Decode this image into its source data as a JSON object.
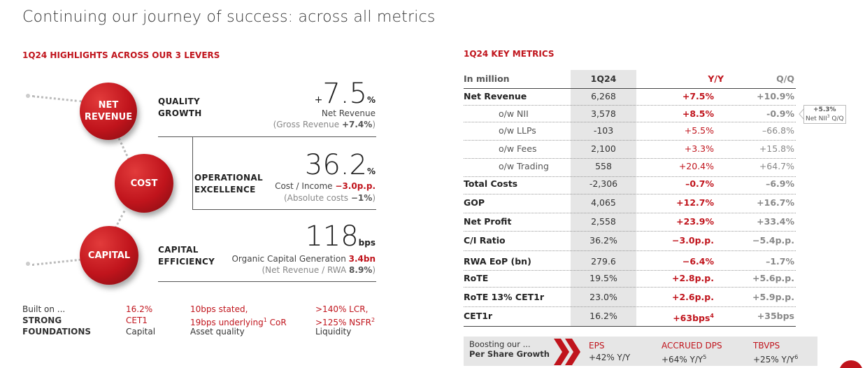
{
  "page_title": "Continuing our journey of success: across all metrics",
  "left_header": "1Q24 HIGHLIGHTS ACROSS OUR 3 LEVERS",
  "right_header": "1Q24 KEY METRICS",
  "levers": [
    {
      "circle_label": "NET REVENUE",
      "label": "QUALITY GROWTH",
      "prefix": "+",
      "value": "7.5",
      "unit": "%",
      "desc1": "Net Revenue",
      "desc2_pre": "(Gross Revenue ",
      "desc2_val": "+7.4%",
      "desc2_post": ")"
    },
    {
      "circle_label": "COST",
      "label": "OPERATIONAL EXCELLENCE",
      "value": "36.2",
      "unit": "%",
      "desc1_pre": "Cost / Income ",
      "desc1_val": "−3.0p.p.",
      "desc2_pre": "(Absolute costs ",
      "desc2_val": "−1%",
      "desc2_post": ")"
    },
    {
      "circle_label": "CAPITAL",
      "label": "CAPITAL EFFICIENCY",
      "value": "118",
      "unit": "bps",
      "desc1_pre": "Organic Capital Generation ",
      "desc1_val": "3.4bn",
      "desc2_pre": "(Net Revenue / RWA ",
      "desc2_val": "8.9%",
      "desc2_post": ")"
    }
  ],
  "foundations": {
    "built_on": "Built on ...",
    "strong": "STRONG",
    "found": "FOUNDATIONS",
    "items": [
      {
        "line1": "16.2%",
        "line2": "CET1",
        "line3": "Capital"
      },
      {
        "line1": "10bps stated,",
        "line2": "19bps underlying",
        "sup": "1",
        "line2b": " CoR",
        "line3": "Asset quality"
      },
      {
        "line1": ">140% LCR,",
        "line2": ">125% NSFR",
        "sup": "2",
        "line3": "Liquidity"
      }
    ]
  },
  "table": {
    "headers": {
      "label": "In million",
      "q": "1Q24",
      "yy": "Y/Y",
      "qq": "Q/Q"
    },
    "rows": [
      {
        "label": "Net Revenue",
        "q": "6,268",
        "yy": "+7.5%",
        "qq": "+10.9%",
        "sub": false
      },
      {
        "label": "o/w NII",
        "q": "3,578",
        "yy": "+8.5%",
        "qq": "-0.9%",
        "sub": true,
        "yy_bold": true,
        "qq_bold": true
      },
      {
        "label": "o/w LLPs",
        "q": "-103",
        "yy": "+5.5%",
        "qq": "–66.8%",
        "sub": true
      },
      {
        "label": "o/w Fees",
        "q": "2,100",
        "yy": "+3.3%",
        "qq": "+15.8%",
        "sub": true
      },
      {
        "label": "o/w Trading",
        "q": "558",
        "yy": "+20.4%",
        "qq": "+64.7%",
        "sub": true
      },
      {
        "label": "Total Costs",
        "q": "-2,306",
        "yy": "–0.7%",
        "qq": "–6.9%",
        "sub": false
      },
      {
        "label": "GOP",
        "q": "4,065",
        "yy": "+12.7%",
        "qq": "+16.7%",
        "sub": false
      },
      {
        "label": "Net Profit",
        "q": "2,558",
        "yy": "+23.9%",
        "qq": "+33.4%",
        "sub": false
      },
      {
        "label": "C/I Ratio",
        "q": "36.2%",
        "yy": "−3.0p.p.",
        "qq": "−5.4p.p.",
        "sub": false
      },
      {
        "label": "RWA EoP (bn)",
        "q": "279.6",
        "yy": "−6.4%",
        "qq": "–1.7%",
        "sub": false
      },
      {
        "label": "RoTE",
        "q": "19.5%",
        "yy": "+2.8p.p.",
        "qq": "+5.6p.p.",
        "sub": false
      },
      {
        "label": "RoTE 13% CET1r",
        "q": "23.0%",
        "yy": "+2.6p.p.",
        "qq": "+5.9p.p.",
        "sub": false
      },
      {
        "label": "CET1r",
        "q": "16.2%",
        "yy": "+63bps",
        "yy_sup": "4",
        "qq": "+35bps",
        "sub": false
      }
    ],
    "callout": {
      "line1": "+5.3%",
      "line2": "Net NII",
      "sup": "3",
      "line2b": " Q/Q"
    }
  },
  "per_share": {
    "label1": "Boosting our ...",
    "label2": "Per Share Growth",
    "items": [
      {
        "name": "EPS",
        "value": "+42% Y/Y",
        "sup": ""
      },
      {
        "name": "ACCRUED DPS",
        "value": "+64% Y/Y",
        "sup": "5"
      },
      {
        "name": "TBVPS",
        "value": "+25% Y/Y",
        "sup": "6"
      }
    ]
  },
  "colors": {
    "accent": "#c0141c",
    "table_highlight": "#e6e6e6",
    "grey_text": "#888888"
  }
}
